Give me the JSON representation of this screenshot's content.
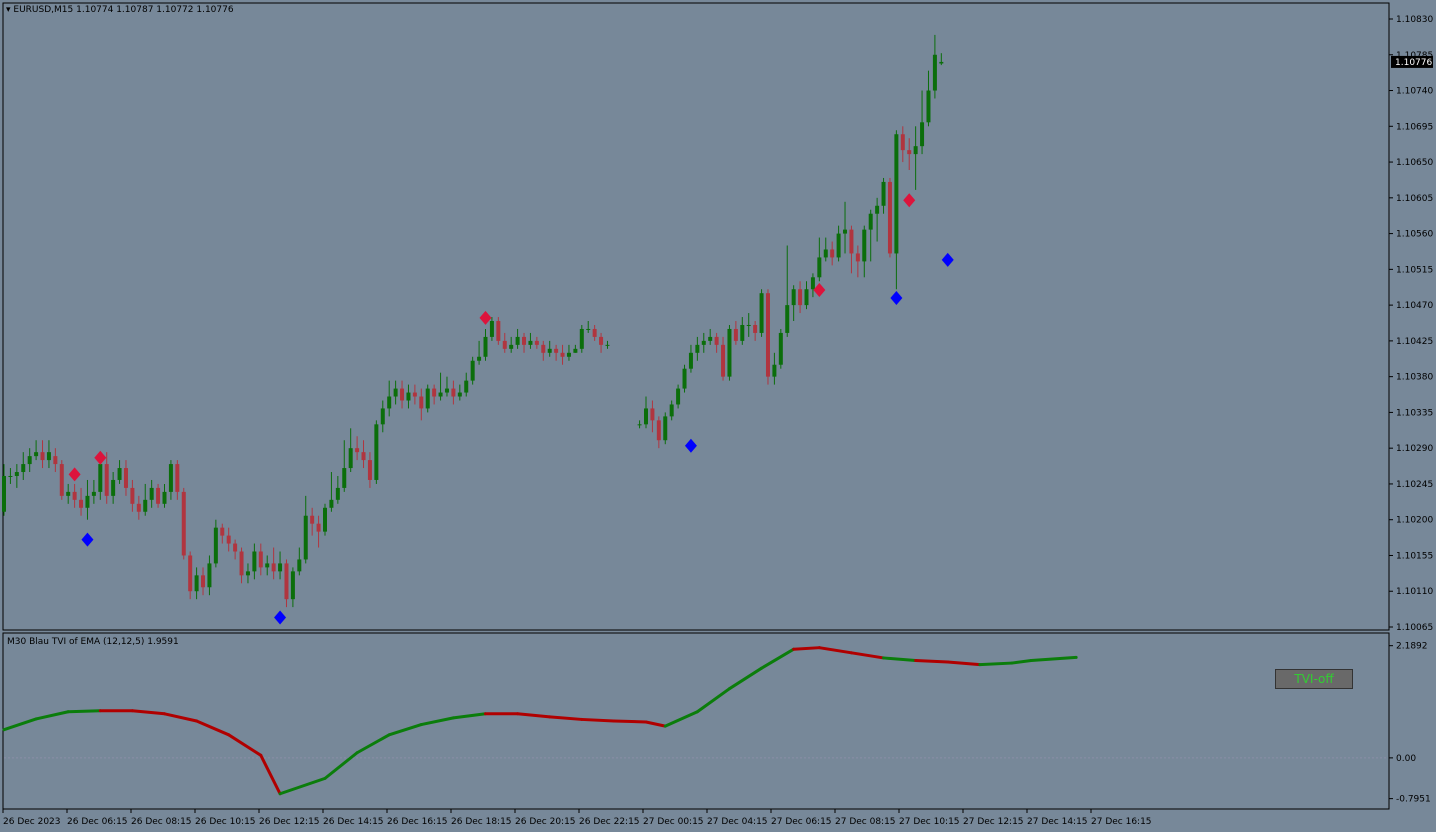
{
  "header": {
    "symbol": "EURUSD,M15",
    "ohlc": "1.10774 1.10787 1.10772 1.10776",
    "indicator": "M30 Blau TVI of EMA (12,12,5) 1.9591"
  },
  "button": {
    "label": "TVI-off"
  },
  "colors": {
    "background": "#778899",
    "bull": "#0b6e0b",
    "bear": "#b0353f",
    "buy_signal": "#0000ff",
    "sell_signal": "#dc143c",
    "axis": "#000000"
  },
  "chart_data": [
    {
      "type": "candlestick",
      "price_ticks": [
        "1.10830",
        "1.10785",
        "1.10740",
        "1.10695",
        "1.10650",
        "1.10605",
        "1.10560",
        "1.10515",
        "1.10470",
        "1.10425",
        "1.10380",
        "1.10335",
        "1.10290",
        "1.10245",
        "1.10200",
        "1.10155",
        "1.10110",
        "1.10065"
      ],
      "ylim": [
        1.10061,
        1.10844
      ],
      "current_price": "1.10776",
      "x_labels": [
        "26 Dec 2023",
        "26 Dec 06:15",
        "26 Dec 08:15",
        "26 Dec 10:15",
        "26 Dec 12:15",
        "26 Dec 14:15",
        "26 Dec 16:15",
        "26 Dec 18:15",
        "26 Dec 20:15",
        "26 Dec 22:15",
        "27 Dec 00:15",
        "27 Dec 04:15",
        "27 Dec 06:15",
        "27 Dec 08:15",
        "27 Dec 10:15",
        "27 Dec 12:15",
        "27 Dec 14:15",
        "27 Dec 16:15"
      ],
      "candles": [
        [
          1.1021,
          1.10255,
          1.1027,
          1.10205
        ],
        [
          1.10255,
          1.10255,
          1.10265,
          1.10245
        ],
        [
          1.10255,
          1.1026,
          1.1027,
          1.1024
        ],
        [
          1.1026,
          1.1027,
          1.10285,
          1.1025
        ],
        [
          1.1027,
          1.1028,
          1.1029,
          1.1026
        ],
        [
          1.1028,
          1.10285,
          1.103,
          1.10275
        ],
        [
          1.10285,
          1.10275,
          1.103,
          1.10265
        ],
        [
          1.10275,
          1.10285,
          1.103,
          1.10265
        ],
        [
          1.1028,
          1.1027,
          1.1029,
          1.1026
        ],
        [
          1.1027,
          1.1023,
          1.10275,
          1.10225
        ],
        [
          1.1023,
          1.10235,
          1.10245,
          1.1022
        ],
        [
          1.10235,
          1.10225,
          1.10245,
          1.10215
        ],
        [
          1.10225,
          1.10215,
          1.1024,
          1.10205
        ],
        [
          1.10215,
          1.1023,
          1.1025,
          1.102
        ],
        [
          1.1023,
          1.10235,
          1.1025,
          1.1022
        ],
        [
          1.10235,
          1.1027,
          1.10275,
          1.10225
        ],
        [
          1.1027,
          1.1023,
          1.10285,
          1.1022
        ],
        [
          1.1023,
          1.1025,
          1.1026,
          1.1022
        ],
        [
          1.1025,
          1.10265,
          1.10275,
          1.10245
        ],
        [
          1.10265,
          1.1024,
          1.10275,
          1.1023
        ],
        [
          1.1024,
          1.1022,
          1.1025,
          1.1021
        ],
        [
          1.1022,
          1.1021,
          1.1023,
          1.102
        ],
        [
          1.1021,
          1.10225,
          1.10245,
          1.10205
        ],
        [
          1.10225,
          1.1024,
          1.1025,
          1.10215
        ],
        [
          1.1024,
          1.1022,
          1.10245,
          1.10215
        ],
        [
          1.1022,
          1.10235,
          1.10245,
          1.10215
        ],
        [
          1.10235,
          1.1027,
          1.10275,
          1.10225
        ],
        [
          1.1027,
          1.10235,
          1.10275,
          1.10225
        ],
        [
          1.10235,
          1.10155,
          1.1024,
          1.1015
        ],
        [
          1.10155,
          1.1011,
          1.1016,
          1.101
        ],
        [
          1.1011,
          1.1013,
          1.1014,
          1.101
        ],
        [
          1.1013,
          1.10115,
          1.1014,
          1.10105
        ],
        [
          1.10115,
          1.10145,
          1.10155,
          1.10105
        ],
        [
          1.10145,
          1.1019,
          1.102,
          1.1014
        ],
        [
          1.1019,
          1.1018,
          1.10195,
          1.1017
        ],
        [
          1.1018,
          1.1017,
          1.1019,
          1.1016
        ],
        [
          1.1017,
          1.1016,
          1.10175,
          1.1015
        ],
        [
          1.1016,
          1.1013,
          1.10165,
          1.1012
        ],
        [
          1.1013,
          1.10135,
          1.10145,
          1.1012
        ],
        [
          1.10135,
          1.1016,
          1.1017,
          1.10125
        ],
        [
          1.1016,
          1.1014,
          1.1017,
          1.1013
        ],
        [
          1.1014,
          1.10145,
          1.10155,
          1.1013
        ],
        [
          1.10145,
          1.10135,
          1.10165,
          1.10125
        ],
        [
          1.10135,
          1.10145,
          1.1016,
          1.10125
        ],
        [
          1.10145,
          1.101,
          1.1015,
          1.1009
        ],
        [
          1.101,
          1.10135,
          1.1014,
          1.1009
        ],
        [
          1.10135,
          1.1015,
          1.10165,
          1.1013
        ],
        [
          1.1015,
          1.10205,
          1.1023,
          1.10145
        ],
        [
          1.10205,
          1.10195,
          1.10215,
          1.1018
        ],
        [
          1.10195,
          1.10185,
          1.10205,
          1.10165
        ],
        [
          1.10185,
          1.10215,
          1.1022,
          1.1018
        ],
        [
          1.10215,
          1.10225,
          1.1026,
          1.1021
        ],
        [
          1.10225,
          1.1024,
          1.10255,
          1.1022
        ],
        [
          1.1024,
          1.10265,
          1.103,
          1.10235
        ],
        [
          1.10265,
          1.1029,
          1.10315,
          1.1026
        ],
        [
          1.1029,
          1.10285,
          1.10305,
          1.10275
        ],
        [
          1.10285,
          1.10275,
          1.103,
          1.10265
        ],
        [
          1.10275,
          1.1025,
          1.10285,
          1.1024
        ],
        [
          1.1025,
          1.1032,
          1.10325,
          1.10245
        ],
        [
          1.1032,
          1.1034,
          1.1035,
          1.1031
        ],
        [
          1.1034,
          1.10355,
          1.10375,
          1.1033
        ],
        [
          1.10355,
          1.10365,
          1.10375,
          1.10345
        ],
        [
          1.10365,
          1.1035,
          1.10375,
          1.1034
        ],
        [
          1.1035,
          1.1036,
          1.1037,
          1.1034
        ],
        [
          1.1036,
          1.10355,
          1.1037,
          1.10345
        ],
        [
          1.10355,
          1.1034,
          1.10365,
          1.10325
        ],
        [
          1.1034,
          1.10365,
          1.1037,
          1.10335
        ],
        [
          1.10365,
          1.10355,
          1.1037,
          1.10345
        ],
        [
          1.10355,
          1.1036,
          1.10385,
          1.1035
        ],
        [
          1.1036,
          1.10365,
          1.1038,
          1.10355
        ],
        [
          1.10365,
          1.10355,
          1.10375,
          1.10345
        ],
        [
          1.10355,
          1.1036,
          1.1037,
          1.1035
        ],
        [
          1.1036,
          1.10375,
          1.10385,
          1.10355
        ],
        [
          1.10375,
          1.104,
          1.10405,
          1.1037
        ],
        [
          1.104,
          1.10405,
          1.10425,
          1.10395
        ],
        [
          1.10405,
          1.1043,
          1.1044,
          1.104
        ],
        [
          1.1043,
          1.1045,
          1.10455,
          1.10425
        ],
        [
          1.1045,
          1.10425,
          1.10455,
          1.1042
        ],
        [
          1.10425,
          1.10415,
          1.10435,
          1.1041
        ],
        [
          1.10415,
          1.1042,
          1.1043,
          1.1041
        ],
        [
          1.1042,
          1.1043,
          1.1044,
          1.10415
        ],
        [
          1.1043,
          1.1042,
          1.10435,
          1.1041
        ],
        [
          1.1042,
          1.10425,
          1.10435,
          1.10415
        ],
        [
          1.10425,
          1.1042,
          1.1043,
          1.10415
        ],
        [
          1.1042,
          1.1041,
          1.10425,
          1.104
        ],
        [
          1.1041,
          1.10415,
          1.10425,
          1.10405
        ],
        [
          1.10415,
          1.1041,
          1.1042,
          1.104
        ],
        [
          1.1041,
          1.10405,
          1.1042,
          1.10395
        ],
        [
          1.10405,
          1.1041,
          1.1042,
          1.104
        ],
        [
          1.1041,
          1.10415,
          1.1042,
          1.1041
        ],
        [
          1.10415,
          1.1044,
          1.10445,
          1.1041
        ],
        [
          1.1044,
          1.1044,
          1.1045,
          1.10435
        ],
        [
          1.1044,
          1.1043,
          1.10445,
          1.10425
        ],
        [
          1.1043,
          1.1042,
          1.10435,
          1.1041
        ],
        [
          1.1042,
          1.1042,
          1.10425,
          1.10415
        ],
        null,
        null,
        null,
        null,
        [
          1.1032,
          1.1032,
          1.10325,
          1.10315
        ],
        [
          1.1032,
          1.1034,
          1.10355,
          1.10315
        ],
        [
          1.1034,
          1.10325,
          1.1035,
          1.1031
        ],
        [
          1.10325,
          1.103,
          1.1033,
          1.1029
        ],
        [
          1.103,
          1.1033,
          1.10335,
          1.10295
        ],
        [
          1.1033,
          1.10345,
          1.1035,
          1.10325
        ],
        [
          1.10345,
          1.10365,
          1.1037,
          1.1034
        ],
        [
          1.10365,
          1.1039,
          1.10395,
          1.1036
        ],
        [
          1.1039,
          1.1041,
          1.1042,
          1.10385
        ],
        [
          1.1041,
          1.1042,
          1.1043,
          1.104
        ],
        [
          1.1042,
          1.10425,
          1.10435,
          1.1041
        ],
        [
          1.10425,
          1.1043,
          1.1044,
          1.1042
        ],
        [
          1.1043,
          1.1042,
          1.10435,
          1.1041
        ],
        [
          1.1042,
          1.1038,
          1.1043,
          1.10375
        ],
        [
          1.1038,
          1.1044,
          1.10445,
          1.10375
        ],
        [
          1.1044,
          1.10425,
          1.1045,
          1.1042
        ],
        [
          1.10425,
          1.10445,
          1.10455,
          1.1042
        ],
        [
          1.10445,
          1.10445,
          1.1046,
          1.1043
        ],
        [
          1.10445,
          1.10435,
          1.1045,
          1.10425
        ],
        [
          1.10435,
          1.10485,
          1.1049,
          1.1043
        ],
        [
          1.10485,
          1.1038,
          1.1049,
          1.1037
        ],
        [
          1.1038,
          1.10395,
          1.1041,
          1.1037
        ],
        [
          1.10395,
          1.10435,
          1.1044,
          1.1039
        ],
        [
          1.10435,
          1.1047,
          1.10545,
          1.1043
        ],
        [
          1.1047,
          1.1049,
          1.10495,
          1.1045
        ],
        [
          1.1049,
          1.1047,
          1.105,
          1.1046
        ],
        [
          1.1047,
          1.1049,
          1.105,
          1.10465
        ],
        [
          1.1049,
          1.10505,
          1.1051,
          1.1048
        ],
        [
          1.10505,
          1.1053,
          1.10555,
          1.105
        ],
        [
          1.1053,
          1.1054,
          1.10555,
          1.10525
        ],
        [
          1.1054,
          1.1053,
          1.1055,
          1.1052
        ],
        [
          1.1053,
          1.1056,
          1.1057,
          1.10525
        ],
        [
          1.1056,
          1.10565,
          1.106,
          1.10535
        ],
        [
          1.10565,
          1.10535,
          1.1057,
          1.1051
        ],
        [
          1.10535,
          1.10525,
          1.10545,
          1.10505
        ],
        [
          1.10525,
          1.10565,
          1.1057,
          1.10505
        ],
        [
          1.10565,
          1.10585,
          1.1059,
          1.10525
        ],
        [
          1.10585,
          1.10595,
          1.10605,
          1.1055
        ],
        [
          1.10595,
          1.10625,
          1.1063,
          1.10585
        ],
        [
          1.10625,
          1.10535,
          1.1063,
          1.1053
        ],
        [
          1.10535,
          1.10685,
          1.1069,
          1.1049
        ],
        [
          1.10685,
          1.10665,
          1.10695,
          1.1065
        ],
        [
          1.10665,
          1.1066,
          1.1068,
          1.1064
        ],
        [
          1.1066,
          1.1067,
          1.10695,
          1.10615
        ],
        [
          1.1067,
          1.107,
          1.1074,
          1.1066
        ],
        [
          1.107,
          1.1074,
          1.10765,
          1.10695
        ],
        [
          1.1074,
          1.10785,
          1.1081,
          1.1073
        ],
        [
          1.10774,
          1.10776,
          1.10787,
          1.10772
        ]
      ],
      "buy_arrows": [
        {
          "candle": 13,
          "price": 1.10175
        },
        {
          "candle": 43,
          "price": 1.10077
        },
        {
          "candle": 107,
          "price": 1.10293
        },
        {
          "candle": 139,
          "price": 1.10479
        },
        {
          "candle": 147,
          "price": 1.10527
        }
      ],
      "sell_arrows": [
        {
          "candle": 11,
          "price": 1.10257
        },
        {
          "candle": 15,
          "price": 1.10278
        },
        {
          "candle": 75,
          "price": 1.10454
        },
        {
          "candle": 127,
          "price": 1.10489
        },
        {
          "candle": 141,
          "price": 1.10602
        }
      ]
    },
    {
      "type": "line",
      "ticks": [
        "2.1892",
        "0.00",
        "-0.7951"
      ],
      "ylim": [
        -0.9,
        2.3
      ],
      "x": [
        0,
        5,
        10,
        15,
        20,
        25,
        30,
        35,
        40,
        43,
        50,
        55,
        60,
        65,
        70,
        75,
        80,
        85,
        90,
        95,
        100,
        103,
        108,
        113,
        118,
        123,
        127,
        132,
        137,
        142,
        147,
        152,
        157,
        160,
        167
      ],
      "values": [
        0.55,
        0.76,
        0.9,
        0.92,
        0.92,
        0.86,
        0.72,
        0.45,
        0.05,
        -0.7,
        -0.4,
        0.1,
        0.45,
        0.65,
        0.78,
        0.86,
        0.86,
        0.8,
        0.75,
        0.72,
        0.7,
        0.62,
        0.9,
        1.35,
        1.75,
        2.12,
        2.15,
        2.05,
        1.95,
        1.9,
        1.87,
        1.82,
        1.85,
        1.9,
        1.96
      ],
      "segment_colors": [
        "green",
        "green",
        "green",
        "red",
        "red",
        "red",
        "red",
        "red",
        "red",
        "green",
        "green",
        "green",
        "green",
        "green",
        "green",
        "red",
        "red",
        "red",
        "red",
        "red",
        "red",
        "green",
        "green",
        "green",
        "green",
        "red",
        "red",
        "red",
        "green",
        "red",
        "red",
        "green",
        "green",
        "green"
      ]
    }
  ]
}
